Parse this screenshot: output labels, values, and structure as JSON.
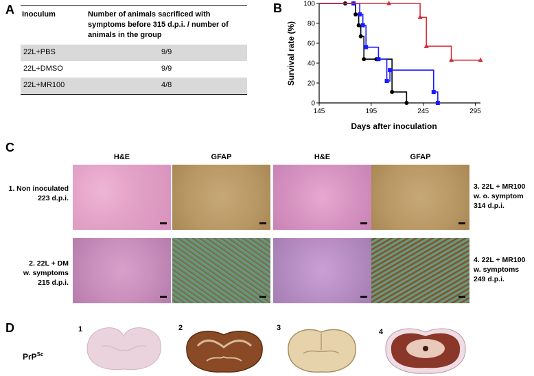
{
  "panel_a": {
    "letter": "A",
    "col_inoculum": "Inoculum",
    "col_count_line1": "Number of animals sacrificed with",
    "col_count_line2": "symptoms before 315 d.p.i. / number of",
    "col_count_line3": "animals in the group",
    "rows": [
      {
        "inoculum": "22L+PBS",
        "count": "9/9"
      },
      {
        "inoculum": "22L+DMSO",
        "count": "9/9"
      },
      {
        "inoculum": "22L+MR100",
        "count": "4/8"
      }
    ]
  },
  "panel_b": {
    "letter": "B",
    "chart_data": {
      "type": "line",
      "xlabel": "Days after inoculation",
      "ylabel": "Survival rate (%)",
      "xlim": [
        145,
        300
      ],
      "ylim": [
        0,
        100
      ],
      "xticks": [
        "145",
        "195",
        "245",
        "295"
      ],
      "yticks": [
        "0",
        "20",
        "40",
        "60",
        "80",
        "100"
      ],
      "series": [
        {
          "color": "#000000",
          "marker": "circle",
          "x": [
            145,
            170,
            180,
            183,
            185,
            188,
            200,
            215,
            229
          ],
          "y": [
            100,
            100,
            89,
            78,
            67,
            44,
            44,
            11,
            0
          ]
        },
        {
          "color": "#1a1aff",
          "marker": "square",
          "x": [
            145,
            178,
            184,
            187,
            190,
            202,
            210,
            213,
            255,
            259
          ],
          "y": [
            100,
            100,
            89,
            78,
            56,
            44,
            22,
            33,
            11,
            0
          ]
        },
        {
          "color": "#d62d3a",
          "marker": "triangle",
          "x": [
            145,
            212,
            242,
            248,
            272,
            300
          ],
          "y": [
            100,
            100,
            86,
            57,
            43,
            43
          ]
        }
      ]
    }
  },
  "panel_c": {
    "letter": "C",
    "col_he": "H&E",
    "col_gfap": "GFAP",
    "label_1_line1": "1. Non inoculated",
    "label_1_line2": "223 d.p.i.",
    "label_2_line1": "2. 22L + DM",
    "label_2_line2": "w. symptoms",
    "label_2_line3": "215 d.p.i.",
    "label_3_line1": "3. 22L + MR100",
    "label_3_line2": "w. o. symptom",
    "label_3_line3": "314 d.p.i.",
    "label_4_line1": "4. 22L + MR100",
    "label_4_line2": "w. symptoms",
    "label_4_line3": "249 d.p.i."
  },
  "panel_d": {
    "letter": "D",
    "prp_label": "PrP",
    "prp_sup": "Sc",
    "slice_labels": [
      "1",
      "2",
      "3",
      "4"
    ]
  }
}
